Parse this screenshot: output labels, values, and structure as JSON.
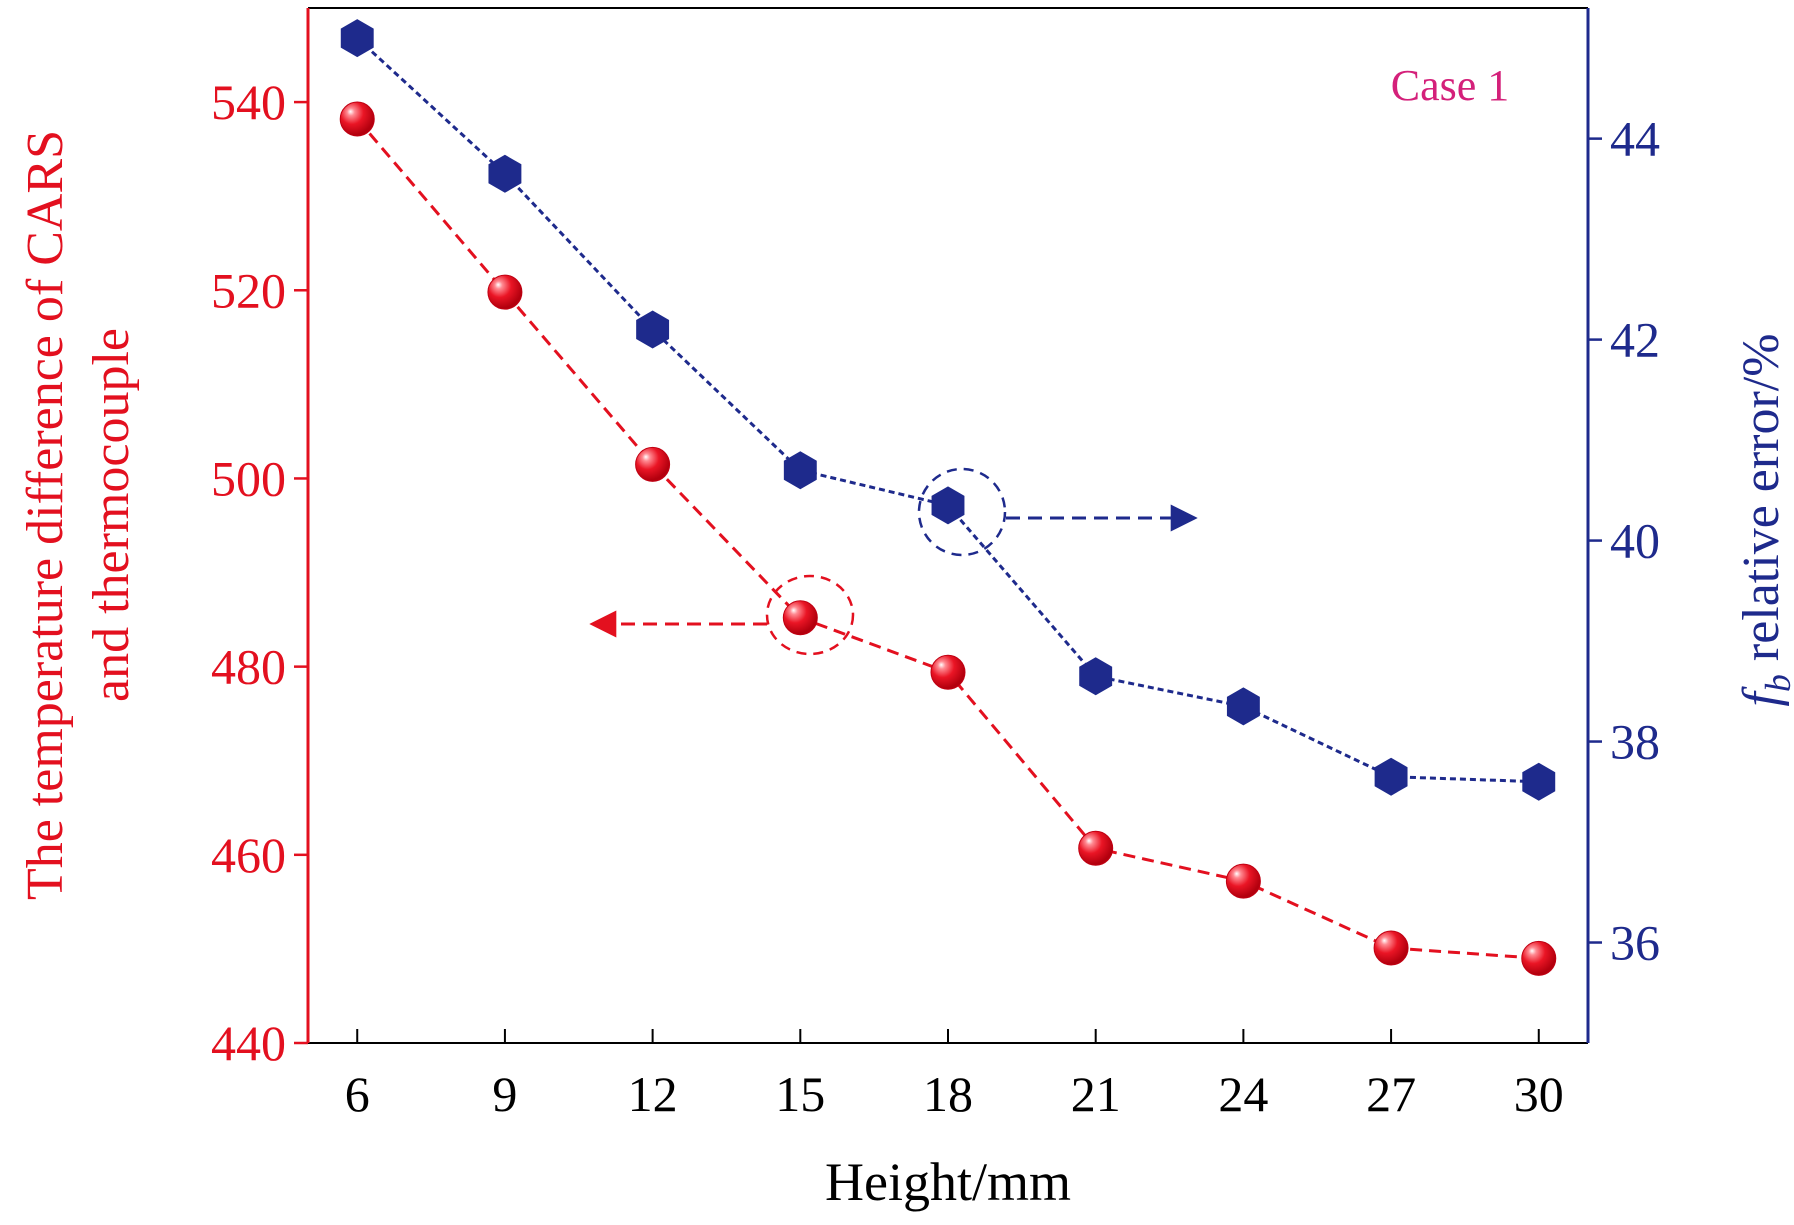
{
  "chart_data": {
    "type": "line",
    "x": [
      6,
      9,
      12,
      15,
      18,
      21,
      24,
      27,
      30
    ],
    "xlabel": "Height/mm",
    "xlim": [
      5,
      31
    ],
    "xticks": [
      6,
      9,
      12,
      15,
      18,
      21,
      24,
      27,
      30
    ],
    "annotation": "Case 1",
    "y_left": {
      "label_line1": "The temperature difference of CARS",
      "label_line2": "and thermocouple",
      "ylim": [
        440,
        550
      ],
      "ticks": [
        440,
        460,
        480,
        500,
        520,
        540
      ]
    },
    "y_right": {
      "label_italic": "f",
      "label_sub": "b",
      "label_rest": " relative error/%",
      "ylim": [
        35,
        45.3
      ],
      "ticks": [
        36,
        38,
        40,
        42,
        44
      ]
    },
    "series": [
      {
        "axis": "left",
        "marker": "sphere",
        "color": "#e3101f",
        "values": [
          538.2,
          519.8,
          501.5,
          485.2,
          479.4,
          460.7,
          457.2,
          450.1,
          449.0
        ]
      },
      {
        "axis": "right",
        "marker": "hexagon",
        "color": "#1e2a8c",
        "values": [
          45.0,
          43.65,
          42.1,
          40.7,
          40.35,
          38.65,
          38.35,
          37.65,
          37.6
        ]
      }
    ],
    "left_axis_color": "#e3101f",
    "right_axis_color": "#1e2a8c",
    "annotation_color": "#d4207a",
    "grid": false
  }
}
